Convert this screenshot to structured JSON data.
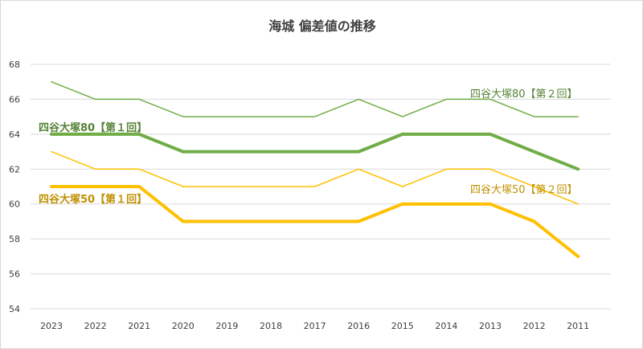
{
  "chart_data": {
    "type": "line",
    "title": "海城 偏差値の推移",
    "categories": [
      "2023",
      "2022",
      "2021",
      "2020",
      "2019",
      "2018",
      "2017",
      "2016",
      "2015",
      "2014",
      "2013",
      "2012",
      "2011"
    ],
    "ylim": [
      54,
      68
    ],
    "yticks": [
      54,
      56,
      58,
      60,
      62,
      64,
      66,
      68
    ],
    "grid": true,
    "series": [
      {
        "name": "四谷大塚80【第２回】",
        "color": "#70ad47",
        "weight": "thin",
        "values": [
          67,
          66,
          66,
          65,
          65,
          65,
          65,
          66,
          65,
          66,
          66,
          65,
          65
        ]
      },
      {
        "name": "四谷大塚80【第１回】",
        "color": "#70ad47",
        "weight": "thick",
        "values": [
          64,
          64,
          64,
          63,
          63,
          63,
          63,
          63,
          64,
          64,
          64,
          63,
          62
        ]
      },
      {
        "name": "四谷大塚50【第２回】",
        "color": "#ffc000",
        "weight": "thin",
        "values": [
          63,
          62,
          62,
          61,
          61,
          61,
          61,
          62,
          61,
          62,
          62,
          61,
          60
        ]
      },
      {
        "name": "四谷大塚50【第１回】",
        "color": "#ffc000",
        "weight": "thick",
        "values": [
          61,
          61,
          61,
          59,
          59,
          59,
          59,
          59,
          60,
          60,
          60,
          59,
          57
        ]
      }
    ],
    "series_labels": {
      "s80_2": "四谷大塚80【第２回】",
      "s80_1": "四谷大塚80【第１回】",
      "s50_2": "四谷大塚50【第２回】",
      "s50_1": "四谷大塚50【第１回】"
    },
    "label_colors": {
      "s80_2": "#548235",
      "s80_1": "#548235",
      "s50_2": "#bf9000",
      "s50_1": "#bf9000"
    }
  }
}
